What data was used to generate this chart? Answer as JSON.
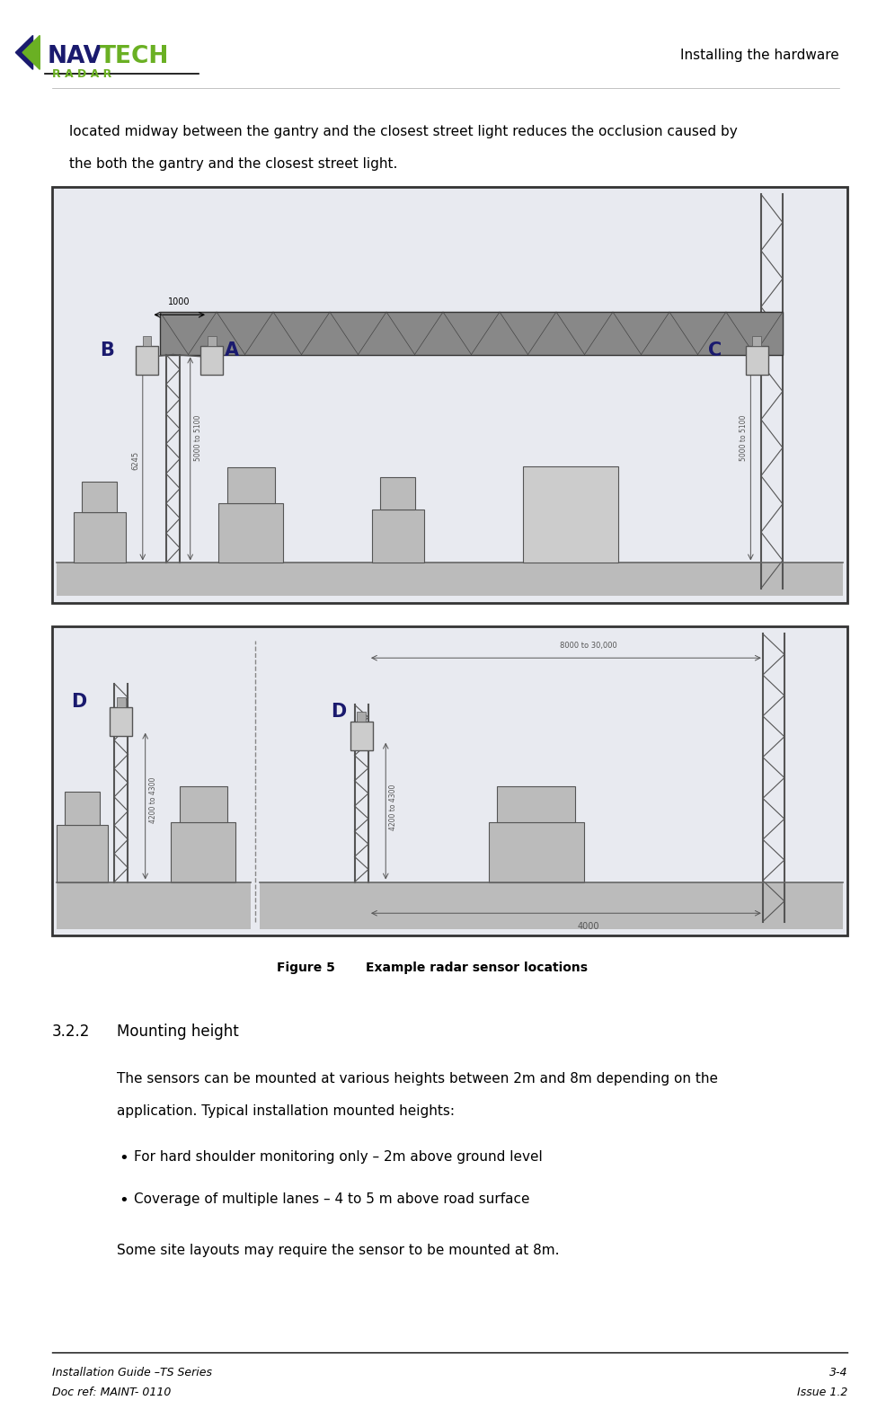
{
  "page_width": 9.96,
  "page_height": 15.78,
  "background_color": "#ffffff",
  "header_text": "Installing the hardware",
  "footer_left1": "Installation Guide –TS Series",
  "footer_right1": "3-4",
  "footer_left2": "Doc ref: MAINT- 0110",
  "footer_right2": "Issue 1.2",
  "body_text1": "located midway between the gantry and the closest street light reduces the occlusion caused by",
  "body_text2": "the both the gantry and the closest street light.",
  "figure_caption": "Figure 5       Example radar sensor locations",
  "section_number": "3.2.2",
  "section_title": "Mounting height",
  "para1": "The sensors can be mounted at various heights between 2m and 8m depending on the",
  "para2": "application. Typical installation mounted heights:",
  "bullet1": "For hard shoulder monitoring only – 2m above ground level",
  "bullet2": "Coverage of multiple lanes – 4 to 5 m above road surface",
  "para3": "Some site layouts may require the sensor to be mounted at 8m.",
  "nav_color_dark": "#1a1a6e",
  "nav_color_green": "#6ab023",
  "diagram1_bg": "#e8eaf0",
  "diagram2_bg": "#e8eaf0",
  "diagram_border": "#333333",
  "label_color": "#1a1a6e",
  "label_A": "A",
  "label_B": "B",
  "label_C": "C",
  "label_D1": "D",
  "label_D2": "D",
  "dim_1000": "1000",
  "dim_6245": "6245",
  "dim_5000_5100_left": "5000 to 5100",
  "dim_5000_5100_right": "5000 to 5100",
  "dim_4200_4300_left": "4200 to 4300",
  "dim_4200_4300_right": "4200 to 4300",
  "dim_8000_30000": "8000 to 30,000",
  "dim_4000": "4000",
  "body_font_size": 11,
  "footer_font_size": 9,
  "header_font_size": 11,
  "section_title_size": 12,
  "caption_font_size": 10
}
